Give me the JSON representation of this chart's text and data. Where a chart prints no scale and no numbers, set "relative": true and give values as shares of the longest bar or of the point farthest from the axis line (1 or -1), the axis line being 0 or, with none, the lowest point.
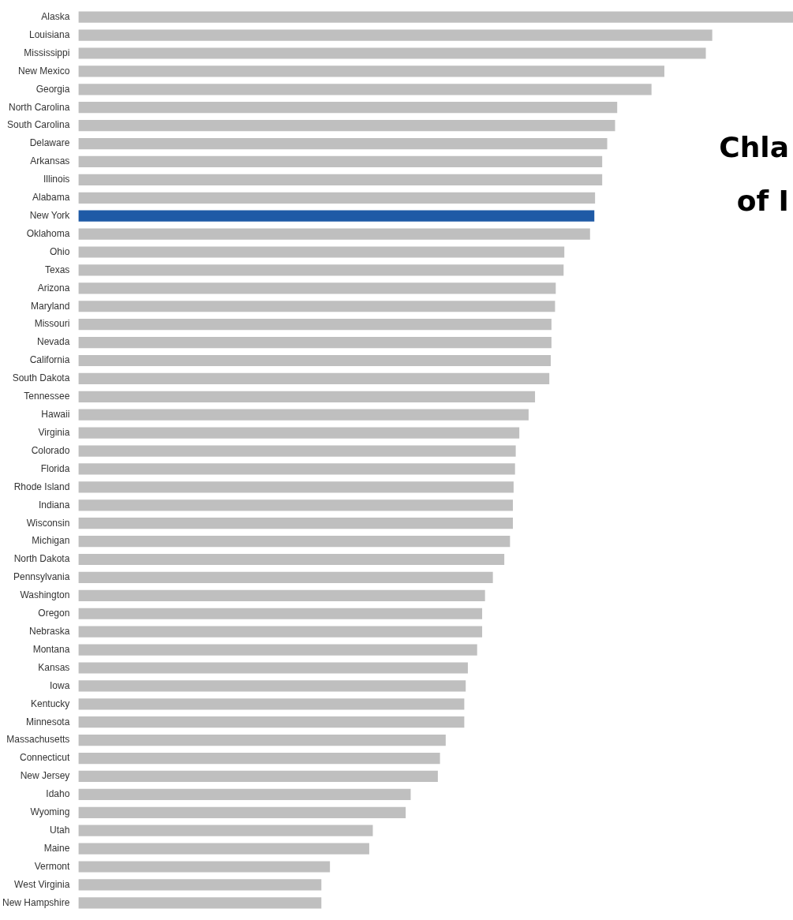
{
  "chart_data": {
    "type": "bar",
    "orientation": "horizontal",
    "relative": true,
    "title": "Chla",
    "subtitle": "of I",
    "categories": [
      "Alaska",
      "Louisiana",
      "Mississippi",
      "New Mexico",
      "Georgia",
      "North Carolina",
      "South Carolina",
      "Delaware",
      "Arkansas",
      "Illinois",
      "Alabama",
      "New York",
      "Oklahoma",
      "Ohio",
      "Texas",
      "Arizona",
      "Maryland",
      "Missouri",
      "Nevada",
      "California",
      "South Dakota",
      "Tennessee",
      "Hawaii",
      "Virginia",
      "Colorado",
      "Florida",
      "Rhode Island",
      "Indiana",
      "Wisconsin",
      "Michigan",
      "North Dakota",
      "Pennsylvania",
      "Washington",
      "Oregon",
      "Nebraska",
      "Montana",
      "Kansas",
      "Iowa",
      "Kentucky",
      "Minnesota",
      "Massachusetts",
      "Connecticut",
      "New Jersey",
      "Idaho",
      "Wyoming",
      "Utah",
      "Maine",
      "Vermont",
      "West Virginia",
      "New Hampshire"
    ],
    "values": [
      1,
      0.887,
      0.878,
      0.82,
      0.802,
      0.754,
      0.751,
      0.74,
      0.733,
      0.733,
      0.723,
      0.722,
      0.716,
      0.68,
      0.679,
      0.668,
      0.667,
      0.662,
      0.662,
      0.661,
      0.659,
      0.639,
      0.63,
      0.617,
      0.612,
      0.611,
      0.609,
      0.608,
      0.608,
      0.604,
      0.596,
      0.58,
      0.569,
      0.565,
      0.565,
      0.558,
      0.545,
      0.542,
      0.54,
      0.54,
      0.514,
      0.506,
      0.503,
      0.465,
      0.458,
      0.412,
      0.407,
      0.352,
      0.34,
      0.34
    ],
    "colors": [
      "#bfbfbf",
      "#bfbfbf",
      "#bfbfbf",
      "#bfbfbf",
      "#bfbfbf",
      "#bfbfbf",
      "#bfbfbf",
      "#bfbfbf",
      "#bfbfbf",
      "#bfbfbf",
      "#bfbfbf",
      "#1f5aa6",
      "#bfbfbf",
      "#bfbfbf",
      "#bfbfbf",
      "#bfbfbf",
      "#bfbfbf",
      "#bfbfbf",
      "#bfbfbf",
      "#bfbfbf",
      "#bfbfbf",
      "#bfbfbf",
      "#bfbfbf",
      "#bfbfbf",
      "#bfbfbf",
      "#bfbfbf",
      "#bfbfbf",
      "#bfbfbf",
      "#bfbfbf",
      "#bfbfbf",
      "#bfbfbf",
      "#bfbfbf",
      "#bfbfbf",
      "#bfbfbf",
      "#bfbfbf",
      "#bfbfbf",
      "#bfbfbf",
      "#bfbfbf",
      "#bfbfbf",
      "#bfbfbf",
      "#bfbfbf",
      "#bfbfbf",
      "#bfbfbf",
      "#bfbfbf",
      "#bfbfbf",
      "#bfbfbf",
      "#bfbfbf",
      "#bfbfbf",
      "#bfbfbf",
      "#bfbfbf"
    ],
    "legend": false
  }
}
